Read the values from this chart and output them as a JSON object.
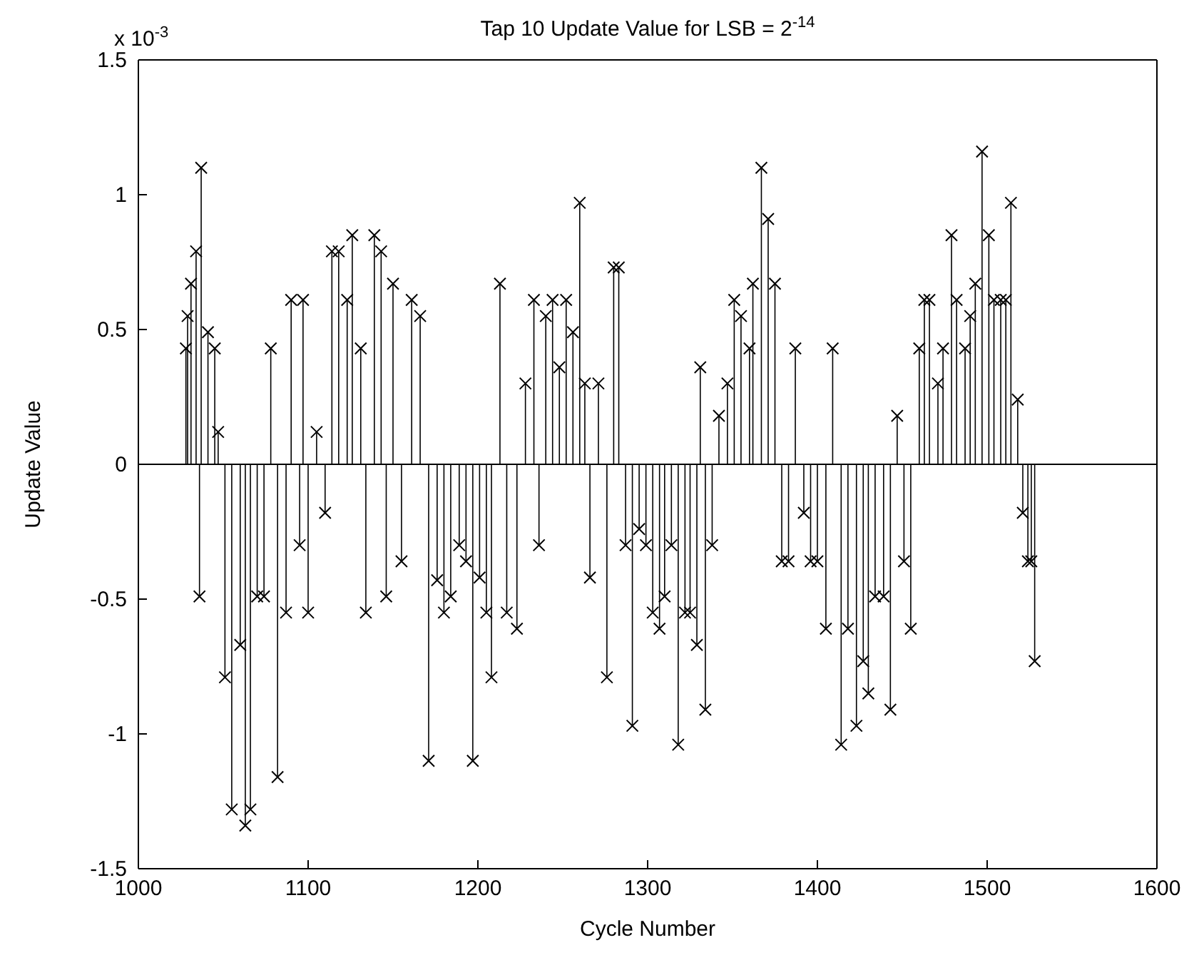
{
  "chart_data": {
    "type": "lollipop",
    "title": "Tap 10 Update Value for LSB = 2$^{-14}$",
    "xlabel": "Cycle Number",
    "ylabel": "Update Value",
    "annotations": [
      "x 10$^{-3}$"
    ],
    "x": [
      1028,
      1029,
      1031,
      1034,
      1036,
      1037,
      1041,
      1045,
      1047,
      1051,
      1055,
      1060,
      1063,
      1066,
      1070,
      1074,
      1078,
      1082,
      1087,
      1090,
      1095,
      1097,
      1100,
      1105,
      1110,
      1114,
      1118,
      1123,
      1126,
      1131,
      1134,
      1139,
      1143,
      1146,
      1150,
      1155,
      1161,
      1166,
      1171,
      1176,
      1180,
      1184,
      1189,
      1193,
      1197,
      1201,
      1205,
      1208,
      1213,
      1217,
      1223,
      1228,
      1233,
      1236,
      1240,
      1244,
      1248,
      1252,
      1256,
      1260,
      1263,
      1266,
      1271,
      1276,
      1280,
      1283,
      1287,
      1291,
      1295,
      1299,
      1303,
      1307,
      1310,
      1314,
      1318,
      1322,
      1325,
      1329,
      1331,
      1334,
      1338,
      1342,
      1347,
      1351,
      1355,
      1360,
      1362,
      1367,
      1371,
      1375,
      1379,
      1383,
      1387,
      1392,
      1396,
      1400,
      1405,
      1409,
      1414,
      1418,
      1423,
      1427,
      1430,
      1434,
      1439,
      1443,
      1447,
      1451,
      1455,
      1460,
      1463,
      1466,
      1471,
      1474,
      1479,
      1482,
      1487,
      1490,
      1493,
      1497,
      1501,
      1504,
      1508,
      1511,
      1514,
      1518,
      1521,
      1524,
      1526,
      1528
    ],
    "values": [
      0.43,
      0.55,
      0.67,
      0.79,
      -0.49,
      1.1,
      0.49,
      0.43,
      0.12,
      -0.79,
      -1.28,
      -0.67,
      -1.34,
      -1.28,
      -0.49,
      -0.49,
      0.43,
      -1.16,
      -0.55,
      0.61,
      -0.3,
      0.61,
      -0.55,
      0.12,
      -0.18,
      0.79,
      0.79,
      0.61,
      0.85,
      0.43,
      -0.55,
      0.85,
      0.79,
      -0.49,
      0.67,
      -0.36,
      0.61,
      0.55,
      -1.1,
      -0.43,
      -0.55,
      -0.49,
      -0.3,
      -0.36,
      -1.1,
      -0.42,
      -0.55,
      -0.79,
      0.67,
      -0.55,
      -0.61,
      0.3,
      0.61,
      -0.3,
      0.55,
      0.61,
      0.36,
      0.61,
      0.49,
      0.97,
      0.3,
      -0.42,
      0.3,
      -0.79,
      0.73,
      0.73,
      -0.3,
      -0.97,
      -0.24,
      -0.3,
      -0.55,
      -0.61,
      -0.49,
      -0.3,
      -1.04,
      -0.55,
      -0.55,
      -0.67,
      0.36,
      -0.91,
      -0.3,
      0.18,
      0.3,
      0.61,
      0.55,
      0.43,
      0.67,
      1.1,
      0.91,
      0.67,
      -0.36,
      -0.36,
      0.43,
      -0.18,
      -0.36,
      -0.36,
      -0.61,
      0.43,
      -1.04,
      -0.61,
      -0.97,
      -0.73,
      -0.85,
      -0.49,
      -0.49,
      -0.91,
      0.18,
      -0.36,
      -0.61,
      0.43,
      0.61,
      0.61,
      0.3,
      0.43,
      0.85,
      0.61,
      0.43,
      0.55,
      0.67,
      1.16,
      0.85,
      0.61,
      0.61,
      0.61,
      0.97,
      0.24,
      -0.18,
      -0.36,
      -0.36,
      -0.73
    ],
    "color": "#000000",
    "marker": "cross",
    "xlim": [
      1000,
      1600
    ],
    "xticks": [
      1000,
      1100,
      1200,
      1300,
      1400,
      1500,
      1600
    ],
    "ylim": [
      -1.5,
      1.5
    ],
    "yticks": [
      -1.5,
      -1,
      -0.5,
      0,
      0.5,
      1,
      1.5
    ],
    "grid": false,
    "ref_lines": [
      {
        "axis": "y",
        "value": 0,
        "color": "#000000"
      }
    ]
  }
}
